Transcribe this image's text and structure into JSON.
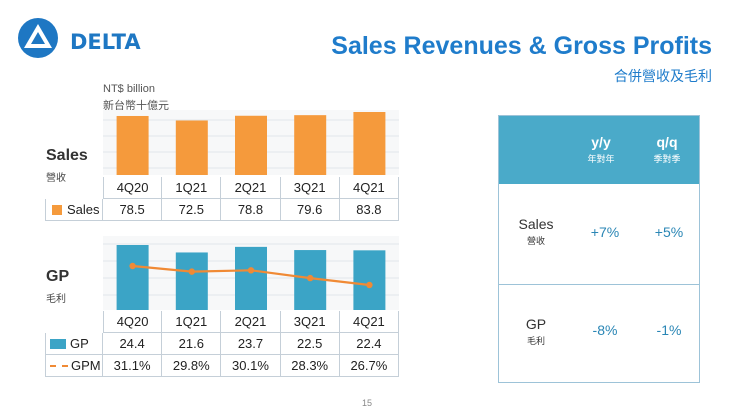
{
  "header": {
    "logo_text": "DELTA",
    "title": "Sales Revenues & Gross Profits",
    "subtitle": "合併營收及毛利",
    "unit_en": "NT$ billion",
    "unit_zh": "新台幣十億元"
  },
  "sales_section": {
    "title": "Sales",
    "subtitle": "營收"
  },
  "gp_section": {
    "title": "GP",
    "subtitle": "毛利"
  },
  "chart_data": [
    {
      "type": "bar",
      "title": "Sales",
      "categories": [
        "4Q20",
        "1Q21",
        "2Q21",
        "3Q21",
        "4Q21"
      ],
      "series": [
        {
          "name": "Sales",
          "values": [
            78.5,
            72.5,
            78.8,
            79.6,
            83.8
          ],
          "display": [
            "78.5",
            "72.5",
            "78.8",
            "79.6",
            "83.8"
          ],
          "color": "#f59a3c"
        }
      ],
      "ylim": [
        0,
        83.8
      ]
    },
    {
      "type": "bar",
      "title": "GP",
      "categories": [
        "4Q20",
        "1Q21",
        "2Q21",
        "3Q21",
        "4Q21"
      ],
      "series": [
        {
          "name": "GP",
          "values": [
            24.4,
            21.6,
            23.7,
            22.5,
            22.4
          ],
          "display": [
            "24.4",
            "21.6",
            "23.7",
            "22.5",
            "22.4"
          ],
          "color": "#3ba4c6"
        },
        {
          "name": "GPM",
          "type": "line",
          "values": [
            31.1,
            29.8,
            30.1,
            28.3,
            26.7
          ],
          "display": [
            "31.1%",
            "29.8%",
            "30.1%",
            "28.3%",
            "26.7%"
          ],
          "color": "#f08a35"
        }
      ],
      "ylim": [
        0,
        24.4
      ]
    }
  ],
  "growth_table": {
    "columns": [
      {
        "label": "y/y",
        "sub": "年對年"
      },
      {
        "label": "q/q",
        "sub": "季對季"
      }
    ],
    "rows": [
      {
        "label": "Sales",
        "sub": "營收",
        "yoy": "+7%",
        "qoq": "+5%"
      },
      {
        "label": "GP",
        "sub": "毛利",
        "yoy": "-8%",
        "qoq": "-1%"
      }
    ]
  },
  "page_number": "15",
  "colors": {
    "brand": "#1f7ccb",
    "orange": "#f59a3c",
    "teal": "#3ba4c6",
    "panel_head": "#4aaac9"
  }
}
